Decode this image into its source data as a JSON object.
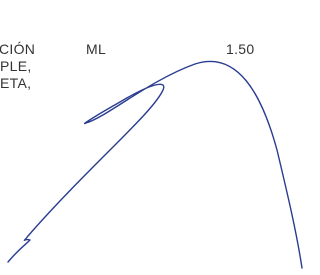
{
  "text": {
    "line1": "CIÓN",
    "unit": "ML",
    "amount": "1.50",
    "line2": "PLE,",
    "line3": "ETA,"
  }
}
